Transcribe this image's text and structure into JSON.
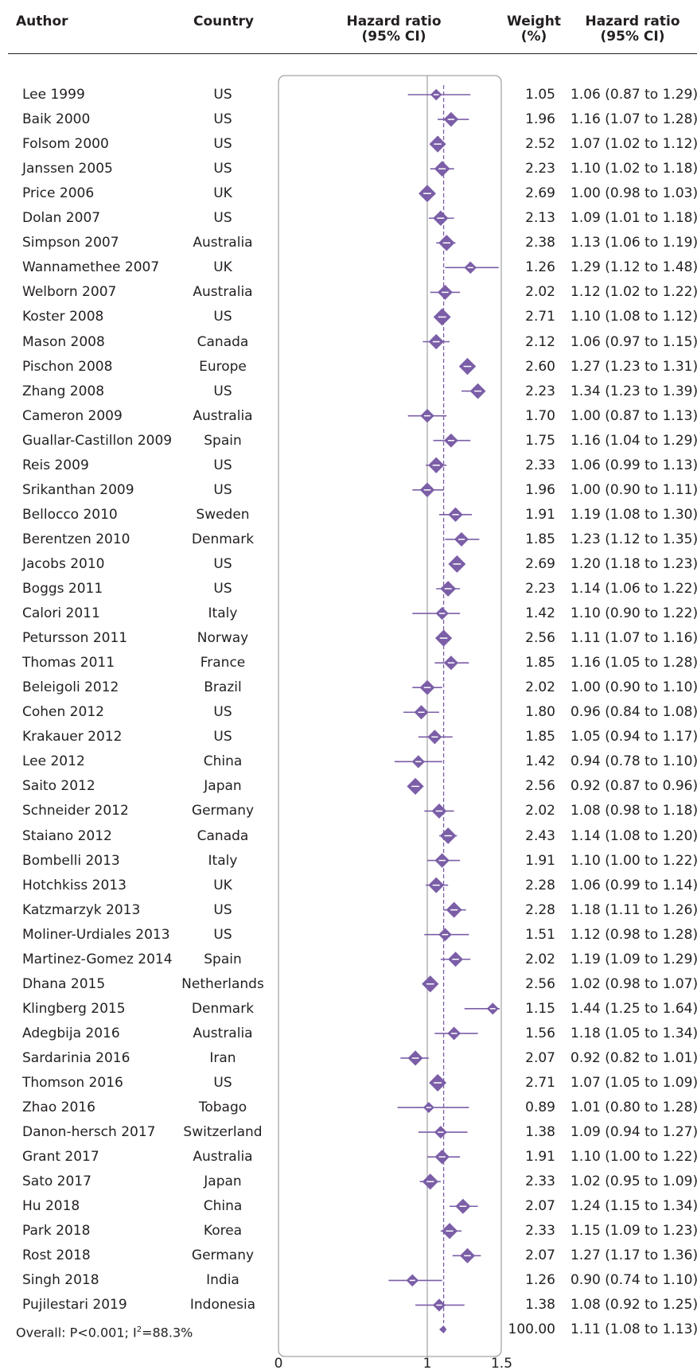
{
  "header": {
    "author": "Author",
    "country": "Country",
    "hr_line1": "Hazard ratio",
    "hr_line2": "(95% CI)",
    "weight_line1": "Weight",
    "weight_line2": "(%)",
    "hr2_line1": "Hazard ratio",
    "hr2_line2": "(95% CI)"
  },
  "overall": {
    "label": "Overall: P<0.001; I",
    "label_sup": "2",
    "label_tail": "=88.3%",
    "weight": "100.00",
    "ci_text": "1.11 (1.08 to 1.13)"
  },
  "colors": {
    "marker": "#7b5ea7",
    "reference": "#7b5ea7",
    "text": "#231f20"
  },
  "chart_data": {
    "type": "forest",
    "xlim": [
      0,
      1.5
    ],
    "xticks": [
      "0",
      "1",
      "1.5"
    ],
    "null_line": 1,
    "overall_line": 1.11,
    "overall": {
      "hr": 1.11,
      "lo": 1.08,
      "hi": 1.13
    },
    "studies": [
      {
        "author": "Lee 1999",
        "country": "US",
        "weight": "1.05",
        "hr": 1.06,
        "lo": 0.87,
        "hi": 1.29,
        "ci": "1.06 (0.87 to 1.29)"
      },
      {
        "author": "Baik 2000",
        "country": "US",
        "weight": "1.96",
        "hr": 1.16,
        "lo": 1.07,
        "hi": 1.28,
        "ci": "1.16 (1.07 to 1.28)"
      },
      {
        "author": "Folsom 2000",
        "country": "US",
        "weight": "2.52",
        "hr": 1.07,
        "lo": 1.02,
        "hi": 1.12,
        "ci": "1.07 (1.02 to 1.12)"
      },
      {
        "author": "Janssen 2005",
        "country": "US",
        "weight": "2.23",
        "hr": 1.1,
        "lo": 1.02,
        "hi": 1.18,
        "ci": "1.10 (1.02 to 1.18)"
      },
      {
        "author": "Price 2006",
        "country": "UK",
        "weight": "2.69",
        "hr": 1.0,
        "lo": 0.98,
        "hi": 1.03,
        "ci": "1.00 (0.98 to 1.03)"
      },
      {
        "author": "Dolan 2007",
        "country": "US",
        "weight": "2.13",
        "hr": 1.09,
        "lo": 1.01,
        "hi": 1.18,
        "ci": "1.09 (1.01 to 1.18)"
      },
      {
        "author": "Simpson 2007",
        "country": "Australia",
        "weight": "2.38",
        "hr": 1.13,
        "lo": 1.06,
        "hi": 1.19,
        "ci": "1.13 (1.06 to 1.19)"
      },
      {
        "author": "Wannamethee 2007",
        "country": "UK",
        "weight": "1.26",
        "hr": 1.29,
        "lo": 1.12,
        "hi": 1.48,
        "ci": "1.29 (1.12 to 1.48)"
      },
      {
        "author": "Welborn 2007",
        "country": "Australia",
        "weight": "2.02",
        "hr": 1.12,
        "lo": 1.02,
        "hi": 1.22,
        "ci": "1.12 (1.02 to 1.22)"
      },
      {
        "author": "Koster 2008",
        "country": "US",
        "weight": "2.71",
        "hr": 1.1,
        "lo": 1.08,
        "hi": 1.12,
        "ci": "1.10 (1.08 to 1.12)"
      },
      {
        "author": "Mason 2008",
        "country": "Canada",
        "weight": "2.12",
        "hr": 1.06,
        "lo": 0.97,
        "hi": 1.15,
        "ci": "1.06 (0.97 to 1.15)"
      },
      {
        "author": "Pischon 2008",
        "country": "Europe",
        "weight": "2.60",
        "hr": 1.27,
        "lo": 1.23,
        "hi": 1.31,
        "ci": "1.27 (1.23 to 1.31)"
      },
      {
        "author": "Zhang 2008",
        "country": "US",
        "weight": "2.23",
        "hr": 1.34,
        "lo": 1.23,
        "hi": 1.39,
        "ci": "1.34 (1.23 to 1.39)"
      },
      {
        "author": "Cameron 2009",
        "country": "Australia",
        "weight": "1.70",
        "hr": 1.0,
        "lo": 0.87,
        "hi": 1.13,
        "ci": "1.00 (0.87 to 1.13)"
      },
      {
        "author": "Guallar-Castillon 2009",
        "country": "Spain",
        "weight": "1.75",
        "hr": 1.16,
        "lo": 1.04,
        "hi": 1.29,
        "ci": "1.16 (1.04 to 1.29)"
      },
      {
        "author": "Reis 2009",
        "country": "US",
        "weight": "2.33",
        "hr": 1.06,
        "lo": 0.99,
        "hi": 1.13,
        "ci": "1.06 (0.99 to 1.13)"
      },
      {
        "author": "Srikanthan 2009",
        "country": "US",
        "weight": "1.96",
        "hr": 1.0,
        "lo": 0.9,
        "hi": 1.11,
        "ci": "1.00 (0.90 to 1.11)"
      },
      {
        "author": "Bellocco 2010",
        "country": "Sweden",
        "weight": "1.91",
        "hr": 1.19,
        "lo": 1.08,
        "hi": 1.3,
        "ci": "1.19 (1.08 to 1.30)"
      },
      {
        "author": "Berentzen 2010",
        "country": "Denmark",
        "weight": "1.85",
        "hr": 1.23,
        "lo": 1.12,
        "hi": 1.35,
        "ci": "1.23 (1.12 to 1.35)"
      },
      {
        "author": "Jacobs 2010",
        "country": "US",
        "weight": "2.69",
        "hr": 1.2,
        "lo": 1.18,
        "hi": 1.23,
        "ci": "1.20 (1.18 to 1.23)"
      },
      {
        "author": "Boggs 2011",
        "country": "US",
        "weight": "2.23",
        "hr": 1.14,
        "lo": 1.06,
        "hi": 1.22,
        "ci": "1.14 (1.06 to 1.22)"
      },
      {
        "author": "Calori 2011",
        "country": "Italy",
        "weight": "1.42",
        "hr": 1.1,
        "lo": 0.9,
        "hi": 1.22,
        "ci": "1.10 (0.90 to 1.22)"
      },
      {
        "author": "Petursson 2011",
        "country": "Norway",
        "weight": "2.56",
        "hr": 1.11,
        "lo": 1.07,
        "hi": 1.16,
        "ci": "1.11 (1.07 to 1.16)"
      },
      {
        "author": "Thomas 2011",
        "country": "France",
        "weight": "1.85",
        "hr": 1.16,
        "lo": 1.05,
        "hi": 1.28,
        "ci": "1.16 (1.05 to 1.28)"
      },
      {
        "author": "Beleigoli 2012",
        "country": "Brazil",
        "weight": "2.02",
        "hr": 1.0,
        "lo": 0.9,
        "hi": 1.1,
        "ci": "1.00 (0.90 to 1.10)"
      },
      {
        "author": "Cohen 2012",
        "country": "US",
        "weight": "1.80",
        "hr": 0.96,
        "lo": 0.84,
        "hi": 1.08,
        "ci": "0.96 (0.84 to 1.08)"
      },
      {
        "author": "Krakauer 2012",
        "country": "US",
        "weight": "1.85",
        "hr": 1.05,
        "lo": 0.94,
        "hi": 1.17,
        "ci": "1.05 (0.94 to 1.17)"
      },
      {
        "author": "Lee 2012",
        "country": "China",
        "weight": "1.42",
        "hr": 0.94,
        "lo": 0.78,
        "hi": 1.1,
        "ci": "0.94 (0.78 to 1.10)"
      },
      {
        "author": "Saito 2012",
        "country": "Japan",
        "weight": "2.56",
        "hr": 0.92,
        "lo": 0.87,
        "hi": 0.96,
        "ci": "0.92 (0.87 to 0.96)"
      },
      {
        "author": "Schneider 2012",
        "country": "Germany",
        "weight": "2.02",
        "hr": 1.08,
        "lo": 0.98,
        "hi": 1.18,
        "ci": "1.08 (0.98 to 1.18)"
      },
      {
        "author": "Staiano 2012",
        "country": "Canada",
        "weight": "2.43",
        "hr": 1.14,
        "lo": 1.08,
        "hi": 1.2,
        "ci": "1.14 (1.08 to 1.20)"
      },
      {
        "author": "Bombelli 2013",
        "country": "Italy",
        "weight": "1.91",
        "hr": 1.1,
        "lo": 1.0,
        "hi": 1.22,
        "ci": "1.10 (1.00 to 1.22)"
      },
      {
        "author": "Hotchkiss 2013",
        "country": "UK",
        "weight": "2.28",
        "hr": 1.06,
        "lo": 0.99,
        "hi": 1.14,
        "ci": "1.06 (0.99 to 1.14)"
      },
      {
        "author": "Katzmarzyk 2013",
        "country": "US",
        "weight": "2.28",
        "hr": 1.18,
        "lo": 1.11,
        "hi": 1.26,
        "ci": "1.18 (1.11 to 1.26)"
      },
      {
        "author": "Moliner-Urdiales 2013",
        "country": "US",
        "weight": "1.51",
        "hr": 1.12,
        "lo": 0.98,
        "hi": 1.28,
        "ci": "1.12 (0.98 to 1.28)"
      },
      {
        "author": "Martinez-Gomez 2014",
        "country": "Spain",
        "weight": "2.02",
        "hr": 1.19,
        "lo": 1.09,
        "hi": 1.29,
        "ci": "1.19 (1.09 to 1.29)"
      },
      {
        "author": "Dhana 2015",
        "country": "Netherlands",
        "weight": "2.56",
        "hr": 1.02,
        "lo": 0.98,
        "hi": 1.07,
        "ci": "1.02 (0.98 to 1.07)"
      },
      {
        "author": "Klingberg 2015",
        "country": "Denmark",
        "weight": "1.15",
        "hr": 1.44,
        "lo": 1.25,
        "hi": 1.64,
        "ci": "1.44 (1.25 to 1.64)"
      },
      {
        "author": "Adegbija 2016",
        "country": "Australia",
        "weight": "1.56",
        "hr": 1.18,
        "lo": 1.05,
        "hi": 1.34,
        "ci": "1.18 (1.05 to 1.34)"
      },
      {
        "author": "Sardarinia 2016",
        "country": "Iran",
        "weight": "2.07",
        "hr": 0.92,
        "lo": 0.82,
        "hi": 1.01,
        "ci": "0.92 (0.82 to 1.01)"
      },
      {
        "author": "Thomson 2016",
        "country": "US",
        "weight": "2.71",
        "hr": 1.07,
        "lo": 1.05,
        "hi": 1.09,
        "ci": "1.07 (1.05 to 1.09)"
      },
      {
        "author": "Zhao 2016",
        "country": "Tobago",
        "weight": "0.89",
        "hr": 1.01,
        "lo": 0.8,
        "hi": 1.28,
        "ci": "1.01 (0.80 to 1.28)"
      },
      {
        "author": "Danon-hersch 2017",
        "country": "Switzerland",
        "weight": "1.38",
        "hr": 1.09,
        "lo": 0.94,
        "hi": 1.27,
        "ci": "1.09 (0.94 to 1.27)"
      },
      {
        "author": "Grant 2017",
        "country": "Australia",
        "weight": "1.91",
        "hr": 1.1,
        "lo": 1.0,
        "hi": 1.22,
        "ci": "1.10 (1.00 to 1.22)"
      },
      {
        "author": "Sato 2017",
        "country": "Japan",
        "weight": "2.33",
        "hr": 1.02,
        "lo": 0.95,
        "hi": 1.09,
        "ci": "1.02 (0.95 to 1.09)"
      },
      {
        "author": "Hu 2018",
        "country": "China",
        "weight": "2.07",
        "hr": 1.24,
        "lo": 1.15,
        "hi": 1.34,
        "ci": "1.24 (1.15 to 1.34)"
      },
      {
        "author": "Park 2018",
        "country": "Korea",
        "weight": "2.33",
        "hr": 1.15,
        "lo": 1.09,
        "hi": 1.23,
        "ci": "1.15 (1.09 to 1.23)"
      },
      {
        "author": "Rost 2018",
        "country": "Germany",
        "weight": "2.07",
        "hr": 1.27,
        "lo": 1.17,
        "hi": 1.36,
        "ci": "1.27 (1.17 to 1.36)"
      },
      {
        "author": "Singh 2018",
        "country": "India",
        "weight": "1.26",
        "hr": 0.9,
        "lo": 0.74,
        "hi": 1.1,
        "ci": "0.90 (0.74 to 1.10)"
      },
      {
        "author": "Pujilestari 2019",
        "country": "Indonesia",
        "weight": "1.38",
        "hr": 1.08,
        "lo": 0.92,
        "hi": 1.25,
        "ci": "1.08 (0.92 to 1.25)"
      }
    ]
  }
}
